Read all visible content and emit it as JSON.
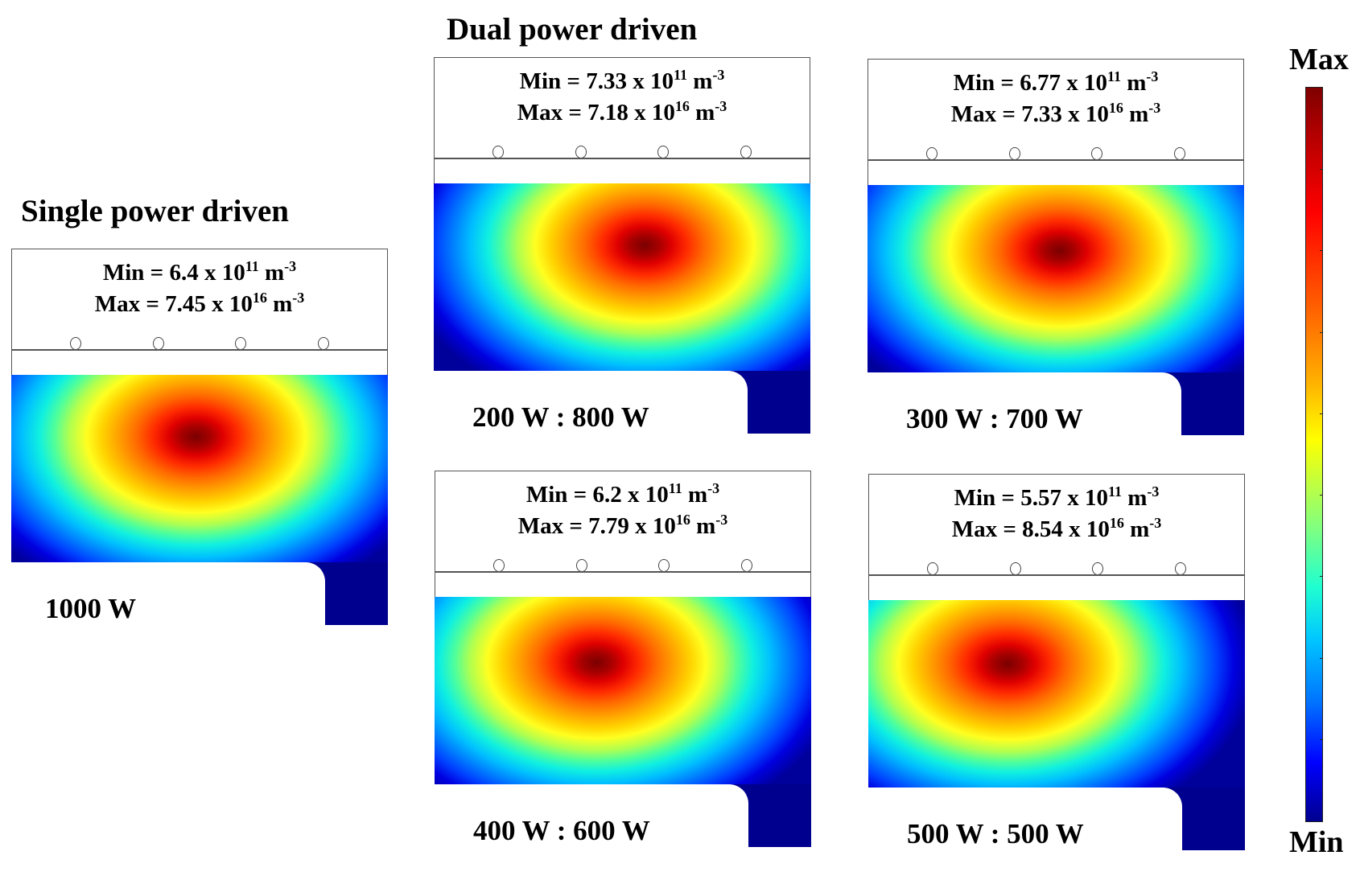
{
  "titles": {
    "dual": "Dual power driven",
    "single": "Single power driven"
  },
  "colorbar": {
    "max_label": "Max",
    "min_label": "Min",
    "colormap": "jet"
  },
  "panels": [
    {
      "id": "single",
      "label": "1000 W",
      "min": {
        "prefix": "Min = ",
        "mantissa": "6.4",
        "base": " x 10",
        "exp": "11",
        "unit": " m",
        "unit_exp": "-3"
      },
      "max": {
        "prefix": "Max = ",
        "mantissa": "7.45",
        "base": " x 10",
        "exp": "16",
        "unit": " m",
        "unit_exp": "-3"
      }
    },
    {
      "id": "200-800",
      "label": "200 W : 800 W",
      "min": {
        "prefix": "Min = ",
        "mantissa": "7.33",
        "base": " x 10",
        "exp": "11",
        "unit": " m",
        "unit_exp": "-3"
      },
      "max": {
        "prefix": "Max = ",
        "mantissa": "7.18",
        "base": " x 10",
        "exp": "16",
        "unit": " m",
        "unit_exp": "-3"
      }
    },
    {
      "id": "300-700",
      "label": "300 W : 700 W",
      "min": {
        "prefix": "Min = ",
        "mantissa": "6.77",
        "base": " x 10",
        "exp": "11",
        "unit": " m",
        "unit_exp": "-3"
      },
      "max": {
        "prefix": "Max = ",
        "mantissa": "7.33",
        "base": " x 10",
        "exp": "16",
        "unit": " m",
        "unit_exp": "-3"
      }
    },
    {
      "id": "400-600",
      "label": "400 W : 600 W",
      "min": {
        "prefix": "Min = ",
        "mantissa": "6.2",
        "base": " x 10",
        "exp": "11",
        "unit": " m",
        "unit_exp": "-3"
      },
      "max": {
        "prefix": "Max = ",
        "mantissa": "7.79",
        "base": " x 10",
        "exp": "16",
        "unit": " m",
        "unit_exp": "-3"
      }
    },
    {
      "id": "500-500",
      "label": "500 W : 500 W",
      "min": {
        "prefix": "Min = ",
        "mantissa": "5.57",
        "base": " x 10",
        "exp": "11",
        "unit": " m",
        "unit_exp": "-3"
      },
      "max": {
        "prefix": "Max = ",
        "mantissa": "8.54",
        "base": " x 10",
        "exp": "16",
        "unit": " m",
        "unit_exp": "-3"
      }
    }
  ]
}
